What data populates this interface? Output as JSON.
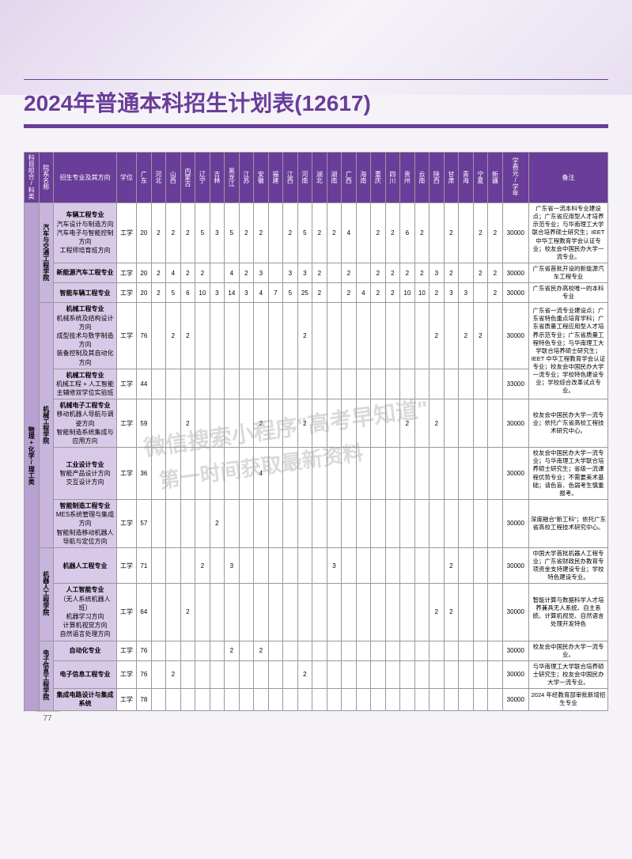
{
  "title": "2024年普通本科招生计划表(12617)",
  "page_number": "77",
  "watermark1": "微信搜索小程序\"高考早知道\"",
  "watermark2": "第一时间获取最新资料",
  "colors": {
    "primary": "#6a3d9a",
    "cat_bg": "#b8a0d0",
    "dept_bg": "#c8b5dd",
    "major_bg": "#d8c9e8",
    "page_bg": "#f5f2f8"
  },
  "headers": {
    "category": "科目组合/科类",
    "dept": "院系名称",
    "major": "招生专业及其方向",
    "degree": "学位",
    "provinces": [
      "广东",
      "河北",
      "山西",
      "内蒙古",
      "辽宁",
      "吉林",
      "黑龙江",
      "江苏",
      "安徽",
      "福建",
      "江西",
      "河南",
      "湖北",
      "湖南",
      "广西",
      "海南",
      "重庆",
      "四川",
      "贵州",
      "云南",
      "陕西",
      "甘肃",
      "青海",
      "宁夏",
      "新疆"
    ],
    "tuition": "学费元/学年",
    "note": "备注"
  },
  "category": "物理+化学/理工类",
  "departments": [
    {
      "name": "汽车与交通工程学院",
      "rows": [
        {
          "major_main": "车辆工程专业",
          "major_sub": "汽车设计与制造方向\n汽车电子与智能控制方向\n工程师培育班方向",
          "degree": "工学",
          "nums": [
            "20",
            "2",
            "2",
            "2",
            "5",
            "3",
            "5",
            "2",
            "2",
            "",
            "2",
            "5",
            "2",
            "2",
            "4",
            "",
            "2",
            "2",
            "6",
            "2",
            "",
            "2",
            "",
            "2",
            "2"
          ],
          "tuition": "30000",
          "note": "广东省一流本科专业建设点；广东省应用型人才培养示范专业；与华南理工大学联合培养硕士研究生；IEET 中华工程教育学会认证专业；校友会中国民办大学一流专业。"
        },
        {
          "major_main": "新能源汽车工程专业",
          "major_sub": "",
          "degree": "工学",
          "nums": [
            "20",
            "2",
            "4",
            "2",
            "2",
            "",
            "4",
            "2",
            "3",
            "",
            "3",
            "3",
            "2",
            "",
            "2",
            "",
            "2",
            "2",
            "2",
            "2",
            "3",
            "2",
            "",
            "2",
            "2"
          ],
          "tuition": "30000",
          "note": "广东省首批开设的新能源汽车工程专业"
        },
        {
          "major_main": "智能车辆工程专业",
          "major_sub": "",
          "degree": "工学",
          "nums": [
            "20",
            "2",
            "5",
            "6",
            "10",
            "3",
            "14",
            "3",
            "4",
            "7",
            "5",
            "25",
            "2",
            "",
            "2",
            "4",
            "2",
            "2",
            "10",
            "10",
            "2",
            "3",
            "3",
            "",
            "2"
          ],
          "tuition": "30000",
          "note": "广东省民办高校唯一的本科专业"
        }
      ]
    },
    {
      "name": "机械工程学院",
      "rows": [
        {
          "major_main": "机械工程专业",
          "major_sub": "机械系统及结构设计方向\n成型技术与数字制造方向\n装备控制及其自动化方向",
          "degree": "工学",
          "nums": [
            "76",
            "",
            "2",
            "2",
            "",
            "",
            "",
            "",
            "",
            "",
            "",
            "2",
            "",
            "",
            "",
            "",
            "",
            "",
            "",
            "",
            "2",
            "",
            "2",
            "2",
            ""
          ],
          "tuition": "30000",
          "note": "广东省一流专业建设点；广东省特色重点培育学科；广东省质量工程应用型人才培养示范专业；广东省质量工程特色专业；与华南理工大学联合培养硕士研究生；IEET 中华工程教育学会认证专业；校友会中国民办大学一流专业；学校特色建设专业；学校综合改革试点专业。",
          "note_rowspan": 2
        },
        {
          "major_main": "机械工程专业",
          "major_sub": "机械工程 + 人工智能\n主辅修双学位实验班",
          "degree": "工学",
          "nums": [
            "44",
            "",
            "",
            "",
            "",
            "",
            "",
            "",
            "",
            "",
            "",
            "",
            "",
            "",
            "",
            "",
            "",
            "",
            "",
            "",
            "",
            "",
            "",
            "",
            ""
          ],
          "tuition": "33000",
          "note_skip": true
        },
        {
          "major_main": "机械电子工程专业",
          "major_sub": "移动机器人导航与调姿方向\n智能制造系统集成与应用方向",
          "degree": "工学",
          "nums": [
            "59",
            "",
            "",
            "2",
            "",
            "",
            "",
            "",
            "2",
            "",
            "",
            "2",
            "",
            "",
            "",
            "",
            "",
            "",
            "2",
            "",
            "2",
            "",
            "",
            "",
            ""
          ],
          "tuition": "30000",
          "note": "校友会中国民办大学一流专业；依托广东省高校工程技术研究中心。"
        },
        {
          "major_main": "工业设计专业",
          "major_sub": "智能产品设计方向\n交互设计方向",
          "degree": "工学",
          "nums": [
            "36",
            "",
            "",
            "",
            "",
            "",
            "",
            "",
            "4",
            "",
            "",
            "",
            "",
            "",
            "",
            "",
            "",
            "",
            "",
            "",
            "",
            "",
            "",
            "",
            ""
          ],
          "tuition": "30000",
          "note": "校友会中国民办大学一流专业；与华南理工大学联合培养硕士研究生；省级一流课程优势专业；不需要美术基础；请色盲、色弱考生慎重报考。"
        },
        {
          "major_main": "智能制造工程专业",
          "major_sub": "MES系统管理与集成方向\n智能制造移动机器人导航与定位方向",
          "degree": "工学",
          "nums": [
            "57",
            "",
            "",
            "",
            "",
            "2",
            "",
            "",
            "",
            "",
            "",
            "",
            "",
            "",
            "",
            "",
            "",
            "",
            "",
            "",
            "",
            "",
            "",
            "",
            ""
          ],
          "tuition": "30000",
          "note": "深度融合\"新工科\"；依托广东省高校工程技术研究中心。"
        }
      ]
    },
    {
      "name": "机器人工程学院",
      "rows": [
        {
          "major_main": "机器人工程专业",
          "major_sub": "",
          "degree": "工学",
          "nums": [
            "71",
            "",
            "",
            "",
            "2",
            "",
            "3",
            "",
            "",
            "",
            "",
            "",
            "",
            "3",
            "",
            "",
            "",
            "",
            "",
            "",
            "",
            "2",
            "",
            "",
            ""
          ],
          "tuition": "30000",
          "note": "中国大学首批机器人工程专业；广东省财政民办教育专项资金支持建设专业；学校特色建设专业。"
        },
        {
          "major_main": "人工智能专业",
          "major_sub": "（无人系统机器人班）\n机器学习方向\n计算机视觉方向\n自然语言处理方向",
          "degree": "工学",
          "nums": [
            "64",
            "",
            "",
            "2",
            "",
            "",
            "",
            "",
            "",
            "",
            "",
            "",
            "",
            "",
            "",
            "",
            "",
            "",
            "",
            "",
            "2",
            "2",
            "",
            "",
            ""
          ],
          "tuition": "30000",
          "note": "智能计算与数据科学人才培养兼具无人系统、自主系统、计算机视觉、自然语言处理开发特色"
        }
      ]
    },
    {
      "name": "电子信息工程学院",
      "rows": [
        {
          "major_main": "自动化专业",
          "major_sub": "",
          "degree": "工学",
          "nums": [
            "76",
            "",
            "",
            "",
            "",
            "",
            "2",
            "",
            "2",
            "",
            "",
            "",
            "",
            "",
            "",
            "",
            "",
            "",
            "",
            "",
            "",
            "",
            "",
            "",
            ""
          ],
          "tuition": "30000",
          "note": "校友会中国民办大学一流专业。"
        },
        {
          "major_main": "电子信息工程专业",
          "major_sub": "",
          "degree": "工学",
          "nums": [
            "76",
            "",
            "2",
            "",
            "",
            "",
            "",
            "",
            "",
            "",
            "",
            "2",
            "",
            "",
            "",
            "",
            "",
            "",
            "",
            "",
            "",
            "",
            "",
            "",
            ""
          ],
          "tuition": "30000",
          "note": "与华南理工大学联合培养硕士研究生；校友会中国民办大学一流专业。"
        },
        {
          "major_main": "集成电路设计与集成系统",
          "major_sub": "",
          "degree": "工学",
          "nums": [
            "78",
            "",
            "",
            "",
            "",
            "",
            "",
            "",
            "",
            "",
            "",
            "",
            "",
            "",
            "",
            "",
            "",
            "",
            "",
            "",
            "",
            "",
            "",
            "",
            ""
          ],
          "tuition": "30000",
          "note": "2024 年经教育部审批新增招生专业"
        }
      ]
    }
  ]
}
